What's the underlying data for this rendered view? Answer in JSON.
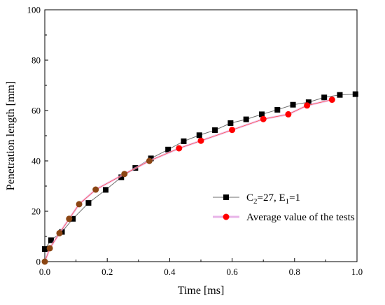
{
  "chart_data": {
    "type": "line",
    "xlabel": "Time [ms]",
    "ylabel": "Penetration length [mm]",
    "xlim": [
      0,
      1.0
    ],
    "ylim": [
      0,
      100
    ],
    "x_ticks": [
      "0.0",
      "0.2",
      "0.4",
      "0.6",
      "0.8",
      "1.0"
    ],
    "y_ticks": [
      "0",
      "20",
      "40",
      "60",
      "80",
      "100"
    ],
    "grid": false,
    "legend_position": "bottom-right",
    "series": [
      {
        "name": "C2=27, E1=1",
        "legend_main": "C",
        "legend_sub1": "2",
        "legend_mid": "=27, E",
        "legend_sub2": "1",
        "legend_end": "=1",
        "marker": "square",
        "line_color": "#6d6d6d",
        "marker_color": "#000000",
        "x": [
          0.0,
          0.02,
          0.055,
          0.09,
          0.14,
          0.195,
          0.245,
          0.29,
          0.34,
          0.395,
          0.445,
          0.495,
          0.545,
          0.595,
          0.645,
          0.695,
          0.745,
          0.795,
          0.845,
          0.895,
          0.945,
          0.995
        ],
        "y": [
          5.0,
          8.5,
          11.8,
          17.0,
          23.3,
          28.5,
          33.5,
          37.2,
          41.0,
          44.5,
          47.8,
          50.2,
          52.2,
          55.0,
          56.5,
          58.5,
          60.3,
          62.3,
          63.3,
          65.2,
          66.2,
          66.5
        ]
      },
      {
        "name": "Average value of the tests",
        "legend_label": "Average value of the tests",
        "marker": "circle",
        "line_color": "#e8b4e8",
        "marker_fill_early": "#8B4513",
        "marker_fill_late": "#ff0000",
        "x": [
          0.0,
          0.016,
          0.047,
          0.078,
          0.11,
          0.163,
          0.255,
          0.335,
          0.43,
          0.5,
          0.6,
          0.7,
          0.78,
          0.84,
          0.92
        ],
        "y": [
          0.0,
          5.3,
          11.3,
          17.0,
          22.8,
          28.6,
          34.8,
          40.0,
          45.0,
          48.0,
          52.3,
          56.6,
          58.5,
          62.0,
          64.3
        ],
        "red_from_x": 0.4
      }
    ]
  }
}
